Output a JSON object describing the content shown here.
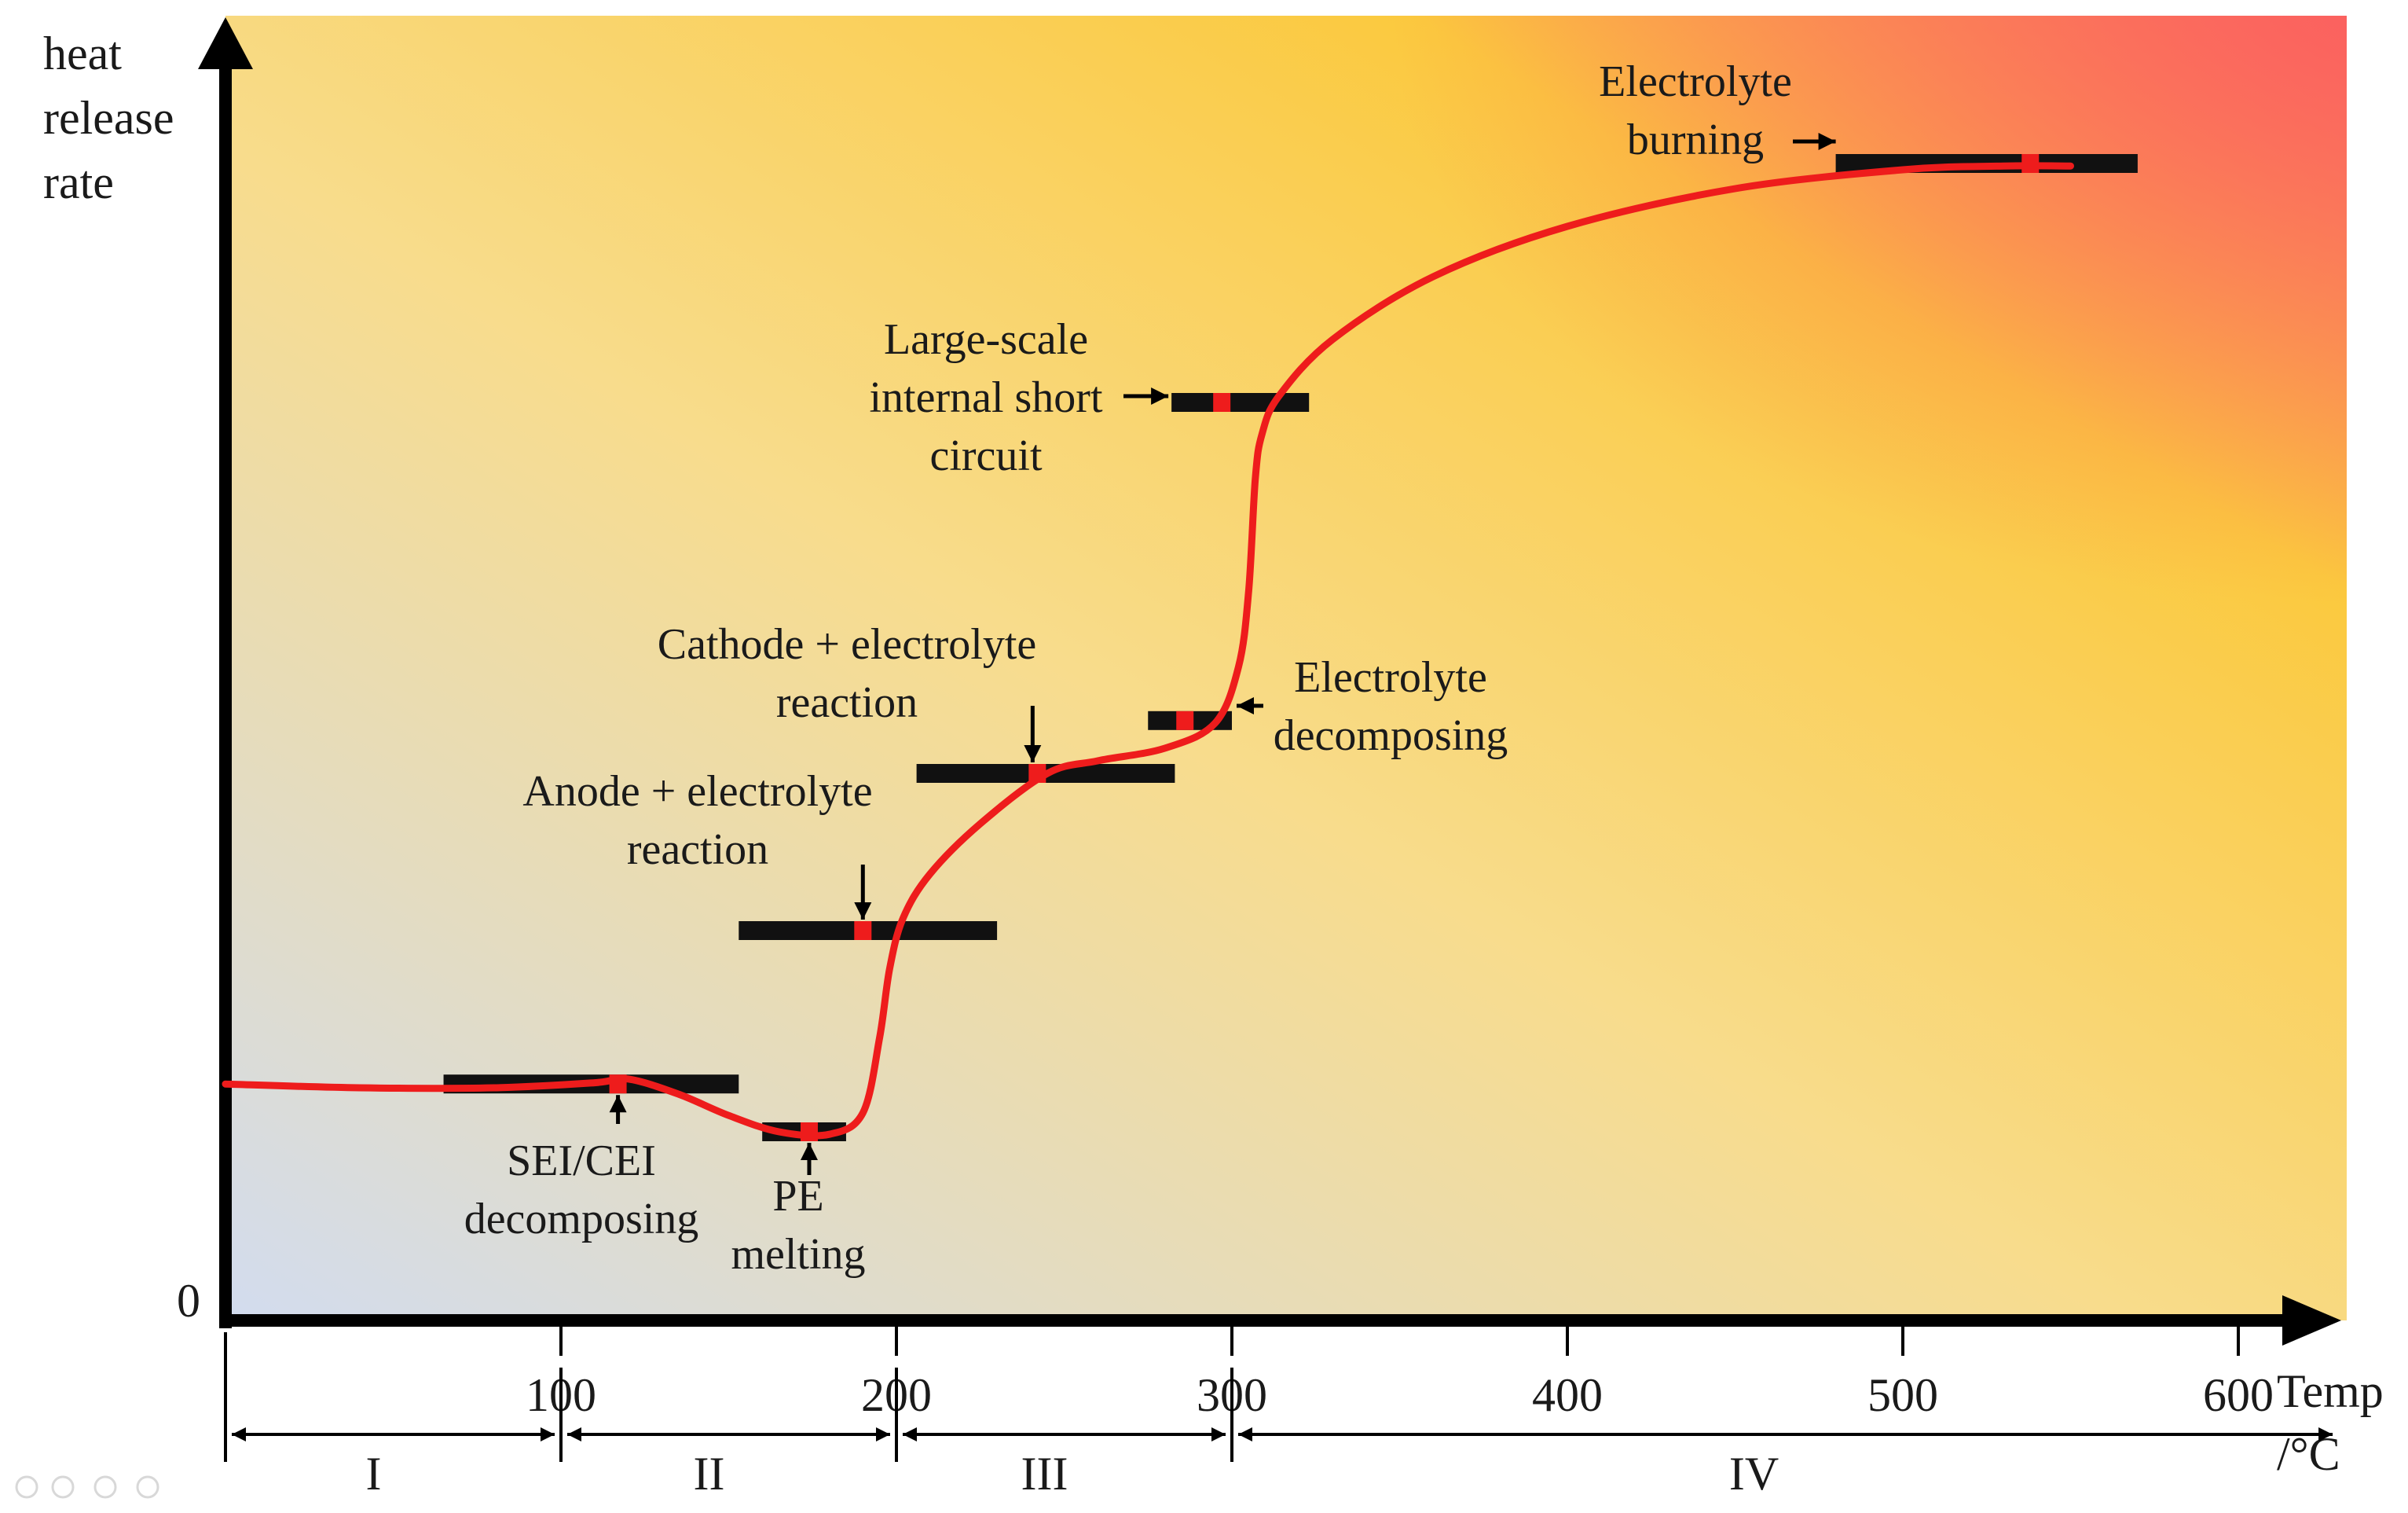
{
  "chart_data": {
    "type": "line",
    "title": "",
    "ylabel_lines": [
      "heat",
      "release",
      "rate"
    ],
    "xlabel_lines": [
      "Temp",
      "/°C"
    ],
    "y_zero_label": "0",
    "xlim": [
      0,
      630
    ],
    "x_ticks": [
      100,
      200,
      300,
      400,
      500,
      600
    ],
    "x_tick_labels": [
      "100",
      "200",
      "300",
      "400",
      "500",
      "600"
    ],
    "y_scale": "qualitative (arbitrary units)",
    "ylim": [
      0,
      100
    ],
    "series": [
      {
        "name": "heat release rate",
        "color": "#ee1c1c",
        "x": [
          0,
          40,
          80,
          110,
          120,
          135,
          150,
          165,
          180,
          190,
          195,
          198,
          202,
          210,
          225,
          245,
          260,
          280,
          295,
          302,
          305,
          307,
          309,
          314,
          330,
          360,
          400,
          450,
          500,
          530,
          550
        ],
        "y": [
          18.8,
          18.5,
          18.5,
          18.9,
          19.2,
          18,
          16.3,
          15,
          14.8,
          16.5,
          22.5,
          28,
          32,
          35.5,
          39.5,
          43.5,
          44.5,
          45.5,
          47.5,
          52,
          58,
          67,
          70.5,
          73.5,
          78,
          83,
          87,
          90,
          91.5,
          91.8,
          91.8
        ]
      }
    ],
    "events": [
      {
        "name": "SEI/CEI decomposing",
        "label_lines": [
          "SEI/CEI",
          "decomposing"
        ],
        "x_start": 65,
        "x_end": 153,
        "y": 18.8,
        "marker_x": 117
      },
      {
        "name": "PE melting",
        "label_lines": [
          "PE",
          "melting"
        ],
        "x_start": 160,
        "x_end": 185,
        "y": 15,
        "marker_x": 174
      },
      {
        "name": "Anode + electrolyte reaction",
        "label_lines": [
          "Anode + electrolyte",
          "reaction"
        ],
        "x_start": 153,
        "x_end": 230,
        "y": 31,
        "marker_x": 190
      },
      {
        "name": "Cathode + electrolyte reaction",
        "label_lines": [
          "Cathode + electrolyte",
          "reaction"
        ],
        "x_start": 206,
        "x_end": 283,
        "y": 43.5,
        "marker_x": 242
      },
      {
        "name": "Electrolyte decomposing",
        "label_lines": [
          "Electrolyte",
          "decomposing"
        ],
        "x_start": 275,
        "x_end": 300,
        "y": 47.7,
        "marker_x": 286
      },
      {
        "name": "Large-scale internal short circuit",
        "label_lines": [
          "Large-scale",
          "internal short",
          "circuit"
        ],
        "x_start": 282,
        "x_end": 323,
        "y": 73,
        "marker_x": 297
      },
      {
        "name": "Electrolyte burning",
        "label_lines": [
          "Electrolyte",
          "burning"
        ],
        "x_start": 480,
        "x_end": 570,
        "y": 92,
        "marker_x": 538
      }
    ],
    "stages": [
      {
        "name": "I",
        "x_start": 0,
        "x_end": 100
      },
      {
        "name": "II",
        "x_start": 100,
        "x_end": 200
      },
      {
        "name": "III",
        "x_start": 200,
        "x_end": 300
      },
      {
        "name": "IV",
        "x_start": 300,
        "x_end": 630
      }
    ],
    "background_gradient": [
      "#d2dcef",
      "#fbd24b",
      "#fb6f5f"
    ]
  }
}
